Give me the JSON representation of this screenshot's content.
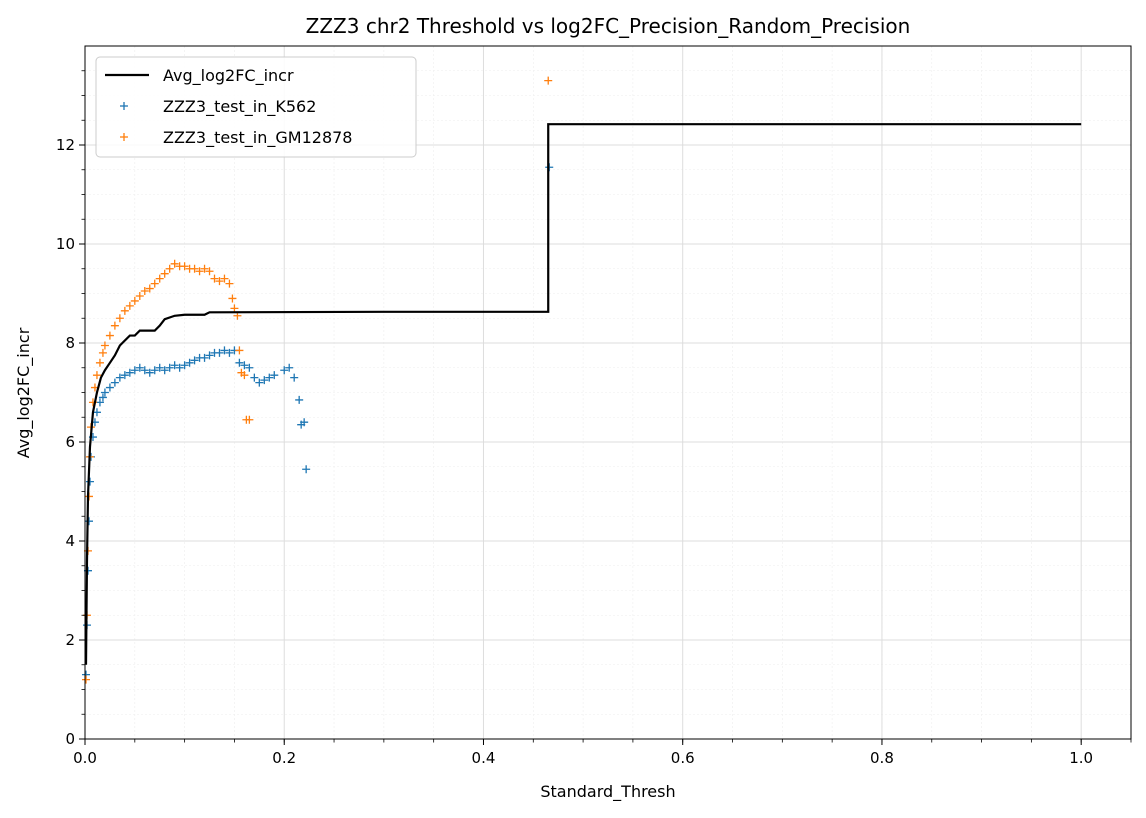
{
  "chart_data": {
    "type": "scatter",
    "title": "ZZZ3 chr2 Threshold vs log2FC_Precision_Random_Precision",
    "xlabel": "Standard_Thresh",
    "ylabel": "Avg_log2FC_incr",
    "xlim": [
      0,
      1.05
    ],
    "ylim": [
      0,
      14
    ],
    "xticks": [
      0.0,
      0.2,
      0.4,
      0.6,
      0.8,
      1.0
    ],
    "xtick_labels": [
      "0.0",
      "0.2",
      "0.4",
      "0.6",
      "0.8",
      "1.0"
    ],
    "yticks": [
      0,
      2,
      4,
      6,
      8,
      10,
      12
    ],
    "ytick_labels": [
      "0",
      "2",
      "4",
      "6",
      "8",
      "10",
      "12"
    ],
    "grid": true,
    "minor_grid": true,
    "legend_position": "top-left",
    "series": [
      {
        "name": "Avg_log2FC_incr",
        "kind": "line",
        "color": "#000000",
        "points": [
          [
            0.001,
            1.5
          ],
          [
            0.002,
            3.6
          ],
          [
            0.003,
            4.9
          ],
          [
            0.005,
            5.9
          ],
          [
            0.008,
            6.6
          ],
          [
            0.012,
            7.0
          ],
          [
            0.016,
            7.3
          ],
          [
            0.02,
            7.45
          ],
          [
            0.025,
            7.6
          ],
          [
            0.03,
            7.75
          ],
          [
            0.035,
            7.95
          ],
          [
            0.04,
            8.05
          ],
          [
            0.045,
            8.15
          ],
          [
            0.05,
            8.15
          ],
          [
            0.055,
            8.25
          ],
          [
            0.07,
            8.25
          ],
          [
            0.075,
            8.35
          ],
          [
            0.08,
            8.48
          ],
          [
            0.09,
            8.55
          ],
          [
            0.1,
            8.57
          ],
          [
            0.12,
            8.57
          ],
          [
            0.125,
            8.62
          ],
          [
            0.3,
            8.63
          ],
          [
            0.465,
            8.63
          ],
          [
            0.465,
            12.42
          ],
          [
            1.0,
            12.42
          ]
        ]
      },
      {
        "name": "ZZZ3_test_in_K562",
        "kind": "scatter",
        "marker": "+",
        "color": "#1f77b4",
        "points": [
          [
            0.001,
            1.3
          ],
          [
            0.002,
            2.3
          ],
          [
            0.003,
            3.4
          ],
          [
            0.004,
            4.4
          ],
          [
            0.005,
            5.2
          ],
          [
            0.006,
            5.7
          ],
          [
            0.008,
            6.1
          ],
          [
            0.01,
            6.4
          ],
          [
            0.012,
            6.6
          ],
          [
            0.015,
            6.8
          ],
          [
            0.018,
            6.9
          ],
          [
            0.02,
            7.0
          ],
          [
            0.025,
            7.1
          ],
          [
            0.03,
            7.2
          ],
          [
            0.035,
            7.3
          ],
          [
            0.04,
            7.35
          ],
          [
            0.045,
            7.4
          ],
          [
            0.05,
            7.45
          ],
          [
            0.055,
            7.5
          ],
          [
            0.06,
            7.45
          ],
          [
            0.065,
            7.4
          ],
          [
            0.07,
            7.45
          ],
          [
            0.075,
            7.5
          ],
          [
            0.08,
            7.45
          ],
          [
            0.085,
            7.5
          ],
          [
            0.09,
            7.55
          ],
          [
            0.095,
            7.5
          ],
          [
            0.1,
            7.55
          ],
          [
            0.105,
            7.6
          ],
          [
            0.11,
            7.65
          ],
          [
            0.115,
            7.7
          ],
          [
            0.12,
            7.7
          ],
          [
            0.125,
            7.75
          ],
          [
            0.13,
            7.8
          ],
          [
            0.135,
            7.8
          ],
          [
            0.14,
            7.85
          ],
          [
            0.145,
            7.8
          ],
          [
            0.15,
            7.85
          ],
          [
            0.155,
            7.6
          ],
          [
            0.16,
            7.55
          ],
          [
            0.165,
            7.5
          ],
          [
            0.17,
            7.3
          ],
          [
            0.175,
            7.2
          ],
          [
            0.18,
            7.25
          ],
          [
            0.185,
            7.3
          ],
          [
            0.19,
            7.35
          ],
          [
            0.2,
            7.45
          ],
          [
            0.205,
            7.5
          ],
          [
            0.21,
            7.3
          ],
          [
            0.215,
            6.85
          ],
          [
            0.217,
            6.35
          ],
          [
            0.22,
            6.4
          ],
          [
            0.222,
            5.45
          ],
          [
            0.466,
            11.55
          ]
        ]
      },
      {
        "name": "ZZZ3_test_in_GM12878",
        "kind": "scatter",
        "marker": "+",
        "color": "#ff7f0e",
        "points": [
          [
            0.001,
            1.2
          ],
          [
            0.002,
            2.5
          ],
          [
            0.003,
            3.8
          ],
          [
            0.004,
            4.9
          ],
          [
            0.005,
            5.7
          ],
          [
            0.006,
            6.3
          ],
          [
            0.008,
            6.8
          ],
          [
            0.01,
            7.1
          ],
          [
            0.012,
            7.35
          ],
          [
            0.015,
            7.6
          ],
          [
            0.018,
            7.8
          ],
          [
            0.02,
            7.95
          ],
          [
            0.025,
            8.15
          ],
          [
            0.03,
            8.35
          ],
          [
            0.035,
            8.5
          ],
          [
            0.04,
            8.65
          ],
          [
            0.045,
            8.75
          ],
          [
            0.05,
            8.85
          ],
          [
            0.055,
            8.95
          ],
          [
            0.06,
            9.05
          ],
          [
            0.065,
            9.1
          ],
          [
            0.07,
            9.2
          ],
          [
            0.075,
            9.3
          ],
          [
            0.08,
            9.4
          ],
          [
            0.085,
            9.5
          ],
          [
            0.09,
            9.6
          ],
          [
            0.095,
            9.55
          ],
          [
            0.1,
            9.55
          ],
          [
            0.105,
            9.5
          ],
          [
            0.11,
            9.5
          ],
          [
            0.115,
            9.45
          ],
          [
            0.12,
            9.5
          ],
          [
            0.125,
            9.45
          ],
          [
            0.13,
            9.3
          ],
          [
            0.135,
            9.25
          ],
          [
            0.14,
            9.3
          ],
          [
            0.145,
            9.2
          ],
          [
            0.148,
            8.9
          ],
          [
            0.15,
            8.7
          ],
          [
            0.153,
            8.55
          ],
          [
            0.155,
            7.85
          ],
          [
            0.157,
            7.4
          ],
          [
            0.16,
            7.35
          ],
          [
            0.162,
            6.45
          ],
          [
            0.165,
            6.45
          ],
          [
            0.465,
            13.3
          ]
        ]
      }
    ]
  }
}
